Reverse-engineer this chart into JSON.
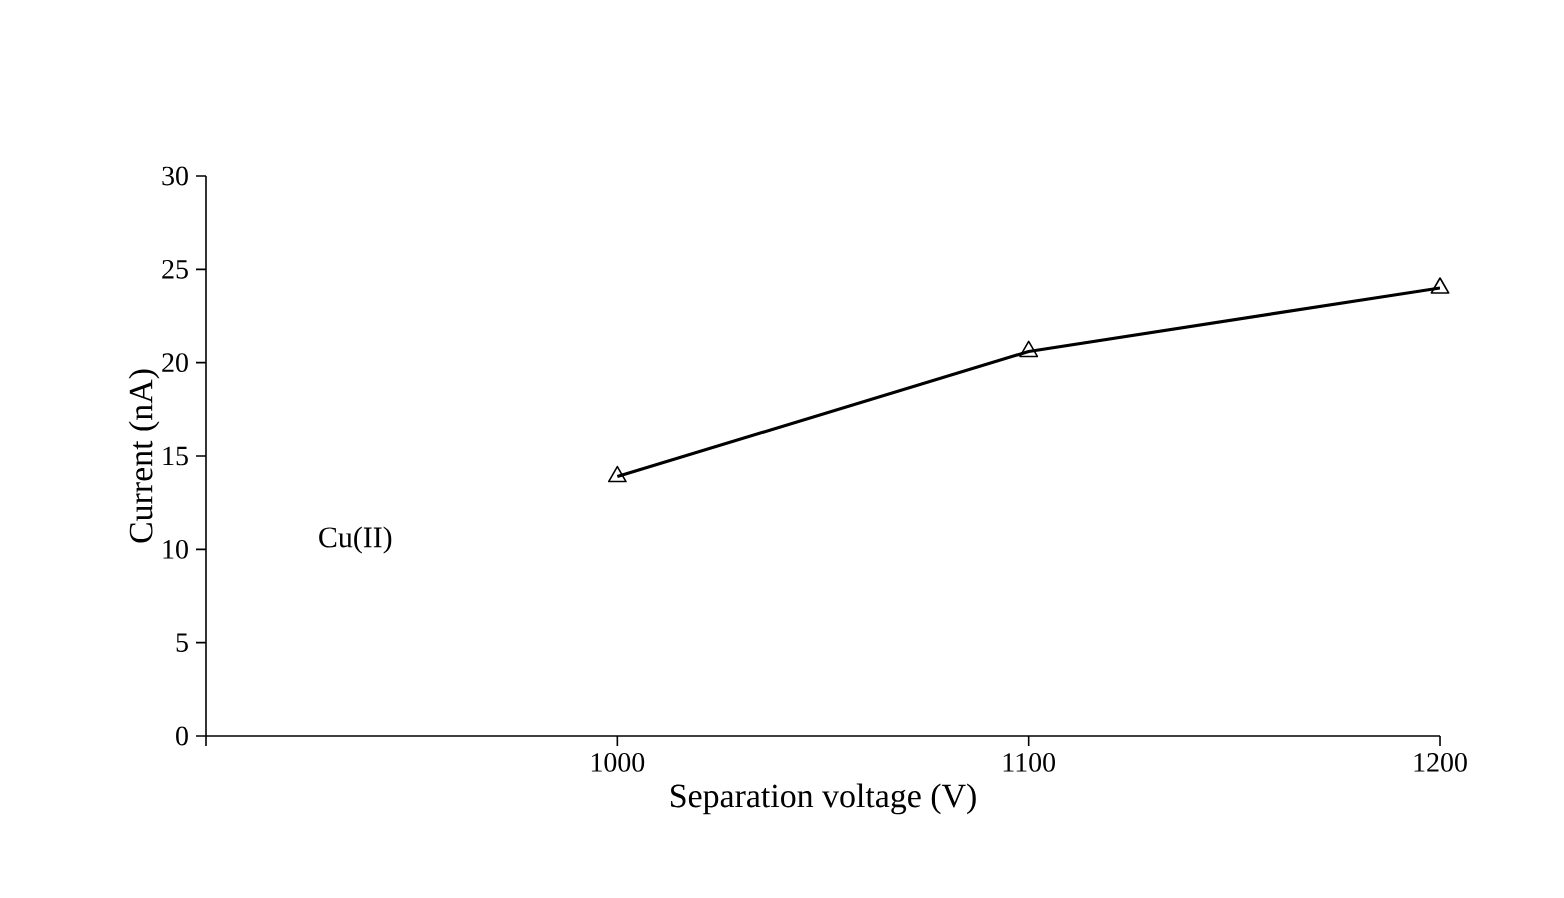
{
  "chart_data": {
    "type": "line",
    "xlabel": "Separation voltage (V)",
    "ylabel": "Current (nA)",
    "annotations": [
      "Cu(II)"
    ],
    "x": [
      1000,
      1100,
      1200
    ],
    "series": [
      {
        "color": "#000000",
        "values": [
          13.9,
          20.6,
          24.0
        ]
      }
    ],
    "xlim": [
      900,
      1200
    ],
    "xticks": [
      {
        "value": 900,
        "label": null
      },
      1000,
      1100,
      1200
    ],
    "ylim": [
      0,
      30
    ],
    "yticks": [
      0,
      5,
      10,
      15,
      20,
      25,
      30
    ],
    "marker": "triangle",
    "line_style": "solid",
    "grid": false
  }
}
